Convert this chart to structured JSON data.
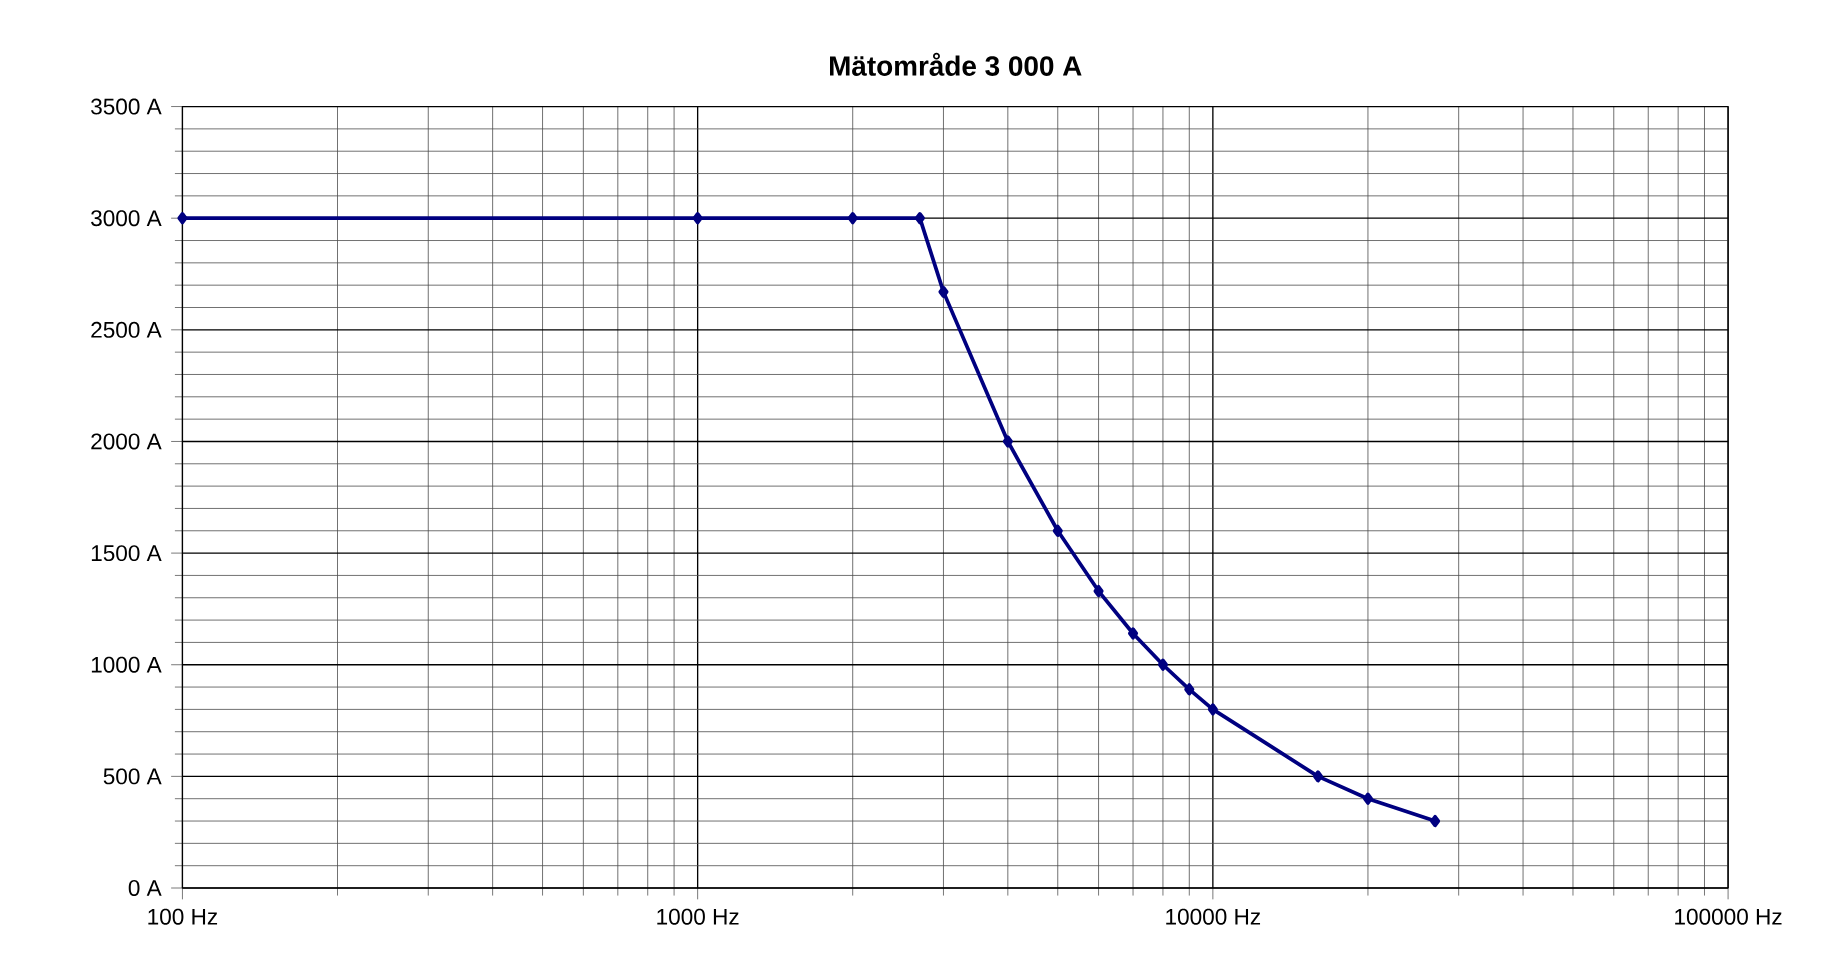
{
  "chart_data": {
    "type": "line",
    "title": "Mätområde 3 000 A",
    "log": "x",
    "x": [
      100,
      1000,
      2000,
      2700,
      3000,
      4000,
      5000,
      6000,
      7000,
      8000,
      9000,
      10000,
      16000,
      20000,
      27000
    ],
    "series": [
      {
        "color": "#000080",
        "values": [
          3000,
          3000,
          3000,
          3000,
          2670,
          2000,
          1600,
          1330,
          1140,
          1000,
          890,
          800,
          500,
          400,
          300
        ]
      }
    ],
    "xlim": [
      100,
      100000
    ],
    "xticks": [
      {
        "value": 100,
        "label": "100 Hz"
      },
      {
        "value": 1000,
        "label": "1000 Hz"
      },
      {
        "value": 10000,
        "label": "10000 Hz"
      },
      {
        "value": 100000,
        "label": "100000 Hz"
      }
    ],
    "ylim": [
      0,
      3500
    ],
    "yticks": [
      {
        "value": 0,
        "label": "0 A"
      },
      {
        "value": 500,
        "label": "500 A"
      },
      {
        "value": 1000,
        "label": "1000 A"
      },
      {
        "value": 1500,
        "label": "1500 A"
      },
      {
        "value": 2000,
        "label": "2000 A"
      },
      {
        "value": 2500,
        "label": "2500 A"
      },
      {
        "value": 3000,
        "label": "3000 A"
      },
      {
        "value": 3500,
        "label": "3500 A"
      }
    ],
    "grid": true,
    "marker": "diamond",
    "line_style": "solid"
  }
}
